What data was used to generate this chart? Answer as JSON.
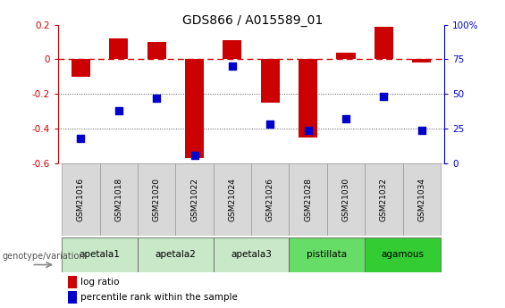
{
  "title": "GDS866 / A015589_01",
  "samples": [
    "GSM21016",
    "GSM21018",
    "GSM21020",
    "GSM21022",
    "GSM21024",
    "GSM21026",
    "GSM21028",
    "GSM21030",
    "GSM21032",
    "GSM21034"
  ],
  "log_ratio": [
    -0.1,
    0.12,
    0.1,
    -0.57,
    0.11,
    -0.25,
    -0.45,
    0.04,
    0.19,
    -0.02
  ],
  "percentile_rank": [
    18,
    38,
    47,
    6,
    70,
    28,
    24,
    32,
    48,
    24
  ],
  "groups": [
    {
      "label": "apetala1",
      "indices": [
        0,
        1
      ],
      "color": "#c8e8c8"
    },
    {
      "label": "apetala2",
      "indices": [
        2,
        3
      ],
      "color": "#c8e8c8"
    },
    {
      "label": "apetala3",
      "indices": [
        4,
        5
      ],
      "color": "#c8e8c8"
    },
    {
      "label": "pistillata",
      "indices": [
        6,
        7
      ],
      "color": "#66dd66"
    },
    {
      "label": "agamous",
      "indices": [
        8,
        9
      ],
      "color": "#33cc33"
    }
  ],
  "sample_box_color": "#d8d8d8",
  "bar_color": "#cc0000",
  "point_color": "#0000cc",
  "ylim_left": [
    -0.6,
    0.2
  ],
  "ylim_right": [
    0,
    100
  ],
  "yticks_left": [
    -0.6,
    -0.4,
    -0.2,
    0.0,
    0.2
  ],
  "yticks_right": [
    0,
    25,
    50,
    75,
    100
  ],
  "ylabel_left_color": "#cc0000",
  "ylabel_right_color": "#0000cc",
  "legend_log_ratio": "log ratio",
  "legend_percentile": "percentile rank within the sample",
  "genotype_label": "genotype/variation",
  "zero_line_color": "#cc0000",
  "dotted_line_color": "#555555",
  "bar_width": 0.5,
  "point_size": 28
}
